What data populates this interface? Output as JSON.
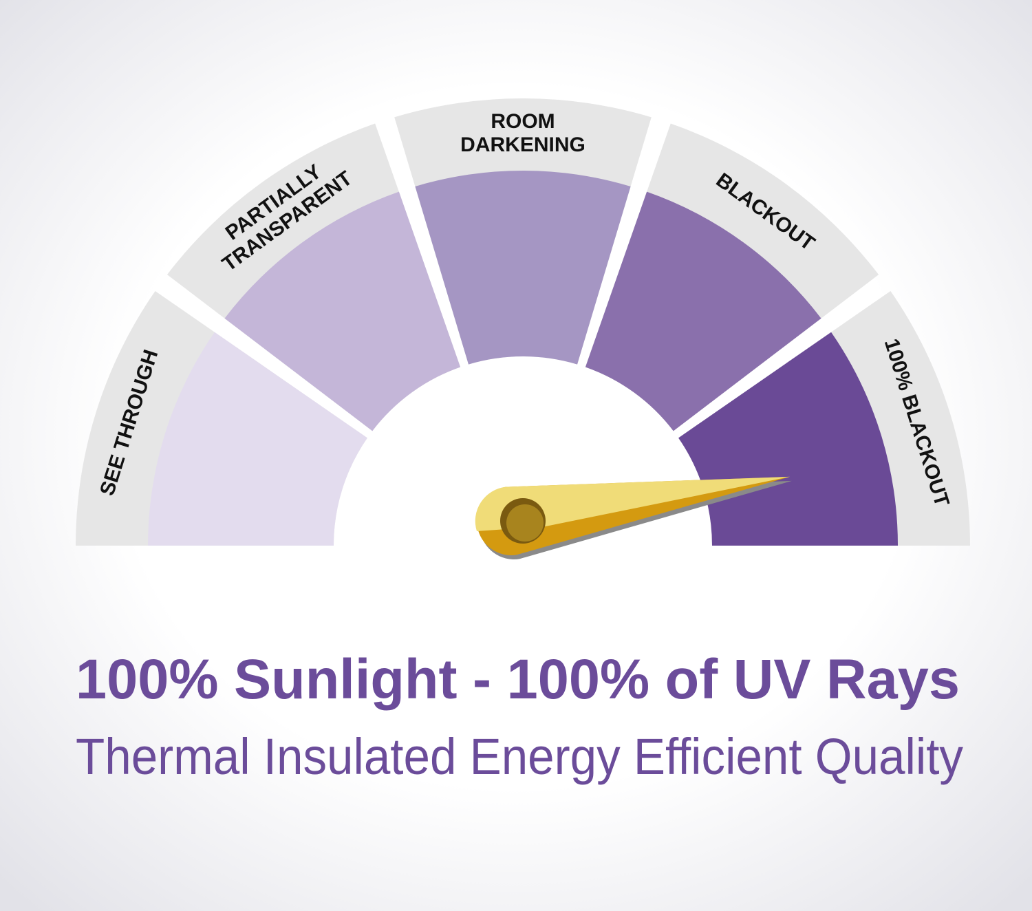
{
  "gauge": {
    "band_color": "#e6e6e6",
    "segments": [
      {
        "label_lines": [
          "SEE THROUGH"
        ],
        "color": "#e3dcee"
      },
      {
        "label_lines": [
          "PARTIALLY",
          "TRANSPARENT"
        ],
        "color": "#c4b6d8"
      },
      {
        "label_lines": [
          "ROOM",
          "DARKENING"
        ],
        "color": "#a596c3"
      },
      {
        "label_lines": [
          "BLACKOUT"
        ],
        "color": "#8a70ac"
      },
      {
        "label_lines": [
          "100% BLACKOUT"
        ],
        "color": "#6a4a96"
      }
    ],
    "needle": {
      "level_fraction": 0.95,
      "color_light": "#f0dc78",
      "color_dark": "#d49a10",
      "selected_segment": "100% BLACKOUT"
    }
  },
  "headline": "100% Sunlight - 100% of UV Rays",
  "subline": "Thermal Insulated Energy Efficient Quality",
  "text_color": "#6b4c9a"
}
